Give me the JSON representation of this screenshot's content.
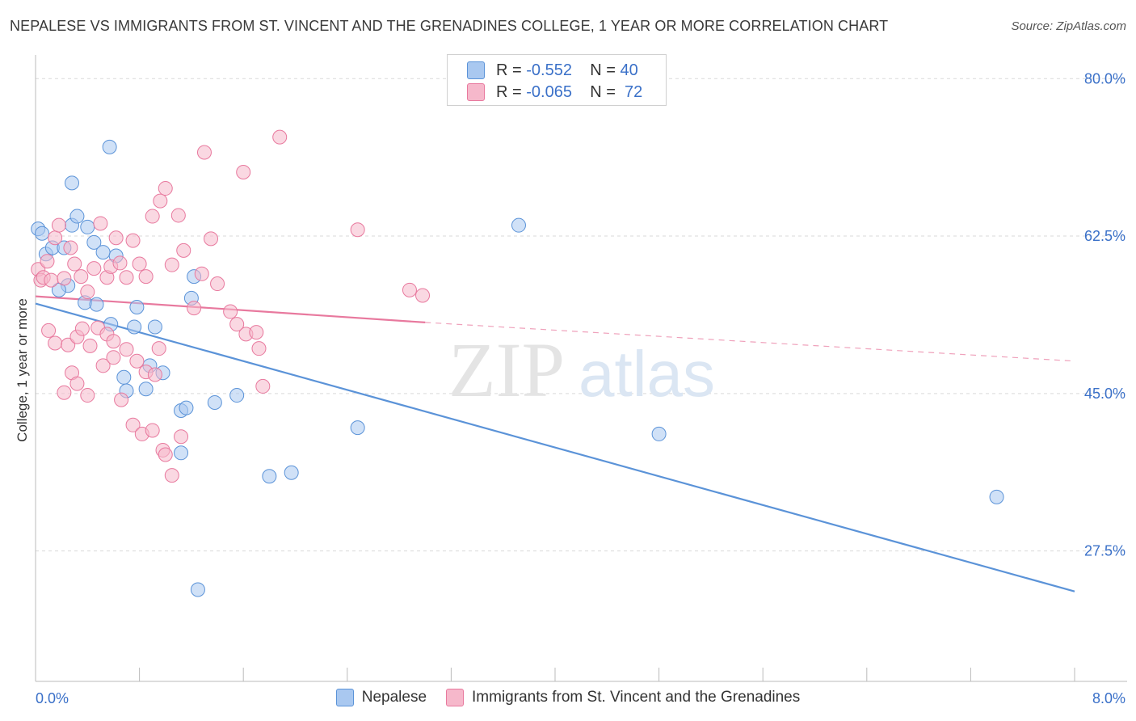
{
  "header": {
    "title": "NEPALESE VS IMMIGRANTS FROM ST. VINCENT AND THE GRENADINES COLLEGE, 1 YEAR OR MORE CORRELATION CHART",
    "source": "Source: ZipAtlas.com"
  },
  "watermark": {
    "part1": "ZIP",
    "part2": "atlas"
  },
  "legend": {
    "rows": [
      {
        "r_label": "R =",
        "r_value": "-0.552",
        "n_label": "N =",
        "n_value": "40",
        "color": "#a9c8f0"
      },
      {
        "r_label": "R =",
        "r_value": "-0.065",
        "n_label": "N =",
        "n_value": "72",
        "color": "#f6b8cb"
      }
    ]
  },
  "bottom_legend": {
    "items": [
      {
        "label": "Nepalese",
        "color": "#a9c8f0"
      },
      {
        "label": "Immigrants from St. Vincent and the Grenadines",
        "color": "#f6b8cb"
      }
    ]
  },
  "chart_data": {
    "type": "scatter",
    "title": "NEPALESE VS IMMIGRANTS FROM ST. VINCENT AND THE GRENADINES COLLEGE, 1 YEAR OR MORE CORRELATION CHART",
    "xlabel": "",
    "ylabel": "College, 1 year or more",
    "xlim": [
      0,
      8
    ],
    "ylim": [
      13,
      82
    ],
    "x_ticks": [
      {
        "value": 0,
        "label": "0.0%"
      },
      {
        "value": 8,
        "label": "8.0%"
      }
    ],
    "y_ticks": [
      {
        "value": 80,
        "label": "80.0%"
      },
      {
        "value": 62.5,
        "label": "62.5%"
      },
      {
        "value": 45,
        "label": "45.0%"
      },
      {
        "value": 27.5,
        "label": "27.5%"
      }
    ],
    "grid": true,
    "legend_position": "top-center",
    "series": [
      {
        "name": "Nepalese",
        "color": "#5b93d8",
        "fill": "#a9c8f0",
        "points": [
          [
            0.02,
            63.3
          ],
          [
            0.05,
            62.8
          ],
          [
            0.08,
            60.5
          ],
          [
            0.13,
            61.2
          ],
          [
            0.22,
            61.2
          ],
          [
            0.28,
            63.7
          ],
          [
            0.32,
            64.7
          ],
          [
            0.4,
            63.5
          ],
          [
            0.45,
            61.8
          ],
          [
            0.52,
            60.7
          ],
          [
            0.62,
            60.3
          ],
          [
            0.57,
            72.4
          ],
          [
            0.28,
            68.4
          ],
          [
            0.25,
            57.0
          ],
          [
            0.18,
            56.5
          ],
          [
            0.38,
            55.1
          ],
          [
            0.47,
            54.9
          ],
          [
            0.58,
            52.7
          ],
          [
            0.78,
            54.6
          ],
          [
            0.76,
            52.4
          ],
          [
            0.88,
            48.1
          ],
          [
            0.98,
            47.3
          ],
          [
            0.68,
            46.8
          ],
          [
            0.7,
            45.3
          ],
          [
            0.85,
            45.5
          ],
          [
            0.92,
            52.4
          ],
          [
            1.12,
            43.1
          ],
          [
            1.16,
            43.4
          ],
          [
            1.2,
            55.6
          ],
          [
            1.22,
            58.0
          ],
          [
            1.38,
            44.0
          ],
          [
            1.55,
            44.8
          ],
          [
            1.8,
            35.8
          ],
          [
            1.97,
            36.2
          ],
          [
            1.12,
            38.4
          ],
          [
            1.25,
            23.2
          ],
          [
            2.48,
            41.2
          ],
          [
            3.72,
            63.7
          ],
          [
            4.8,
            40.5
          ],
          [
            7.4,
            33.5
          ]
        ]
      },
      {
        "name": "Immigrants from St. Vincent and the Grenadines",
        "color": "#e8799e",
        "fill": "#f6b8cb",
        "points": [
          [
            0.02,
            58.8
          ],
          [
            0.04,
            57.6
          ],
          [
            0.06,
            57.9
          ],
          [
            0.09,
            59.7
          ],
          [
            0.12,
            57.6
          ],
          [
            0.15,
            62.3
          ],
          [
            0.18,
            63.7
          ],
          [
            0.22,
            57.8
          ],
          [
            0.27,
            61.2
          ],
          [
            0.3,
            59.4
          ],
          [
            0.35,
            58.0
          ],
          [
            0.4,
            56.3
          ],
          [
            0.45,
            58.9
          ],
          [
            0.5,
            63.9
          ],
          [
            0.55,
            57.9
          ],
          [
            0.58,
            59.1
          ],
          [
            0.62,
            62.3
          ],
          [
            0.65,
            59.5
          ],
          [
            0.7,
            57.9
          ],
          [
            0.75,
            62.0
          ],
          [
            0.8,
            59.4
          ],
          [
            0.85,
            58.0
          ],
          [
            0.9,
            64.7
          ],
          [
            0.96,
            66.4
          ],
          [
            1.0,
            67.8
          ],
          [
            1.05,
            59.3
          ],
          [
            1.1,
            64.8
          ],
          [
            1.14,
            60.9
          ],
          [
            1.22,
            54.5
          ],
          [
            1.28,
            58.3
          ],
          [
            1.35,
            62.2
          ],
          [
            1.4,
            57.2
          ],
          [
            1.5,
            54.1
          ],
          [
            1.55,
            52.7
          ],
          [
            1.62,
            51.6
          ],
          [
            1.7,
            51.8
          ],
          [
            1.72,
            50.0
          ],
          [
            1.75,
            45.8
          ],
          [
            0.1,
            52.0
          ],
          [
            0.15,
            50.6
          ],
          [
            0.25,
            50.4
          ],
          [
            0.32,
            51.3
          ],
          [
            0.36,
            52.2
          ],
          [
            0.42,
            50.3
          ],
          [
            0.48,
            52.3
          ],
          [
            0.55,
            51.6
          ],
          [
            0.6,
            50.8
          ],
          [
            0.7,
            49.9
          ],
          [
            0.78,
            48.6
          ],
          [
            0.85,
            47.4
          ],
          [
            0.92,
            47.1
          ],
          [
            0.95,
            50.0
          ],
          [
            0.28,
            47.3
          ],
          [
            0.32,
            46.1
          ],
          [
            0.4,
            44.8
          ],
          [
            0.22,
            45.1
          ],
          [
            0.52,
            48.1
          ],
          [
            0.6,
            49.0
          ],
          [
            0.66,
            44.3
          ],
          [
            0.75,
            41.5
          ],
          [
            0.82,
            40.5
          ],
          [
            0.9,
            40.9
          ],
          [
            0.98,
            38.7
          ],
          [
            1.0,
            38.2
          ],
          [
            1.05,
            35.9
          ],
          [
            1.12,
            40.2
          ],
          [
            1.3,
            71.8
          ],
          [
            1.6,
            69.6
          ],
          [
            1.88,
            73.5
          ],
          [
            2.48,
            63.2
          ],
          [
            2.88,
            56.5
          ],
          [
            2.98,
            55.9
          ]
        ]
      }
    ],
    "trend_lines": [
      {
        "series": "Nepalese",
        "x": [
          0,
          8
        ],
        "y": [
          55.0,
          23.0
        ],
        "style": "solid"
      },
      {
        "series": "Immigrants from St. Vincent and the Grenadines",
        "x": [
          0,
          3.0
        ],
        "y": [
          55.8,
          52.9
        ],
        "style": "solid"
      },
      {
        "series": "Immigrants from St. Vincent and the Grenadines",
        "x": [
          3.0,
          8
        ],
        "y": [
          52.9,
          48.6
        ],
        "style": "dashed"
      }
    ]
  }
}
